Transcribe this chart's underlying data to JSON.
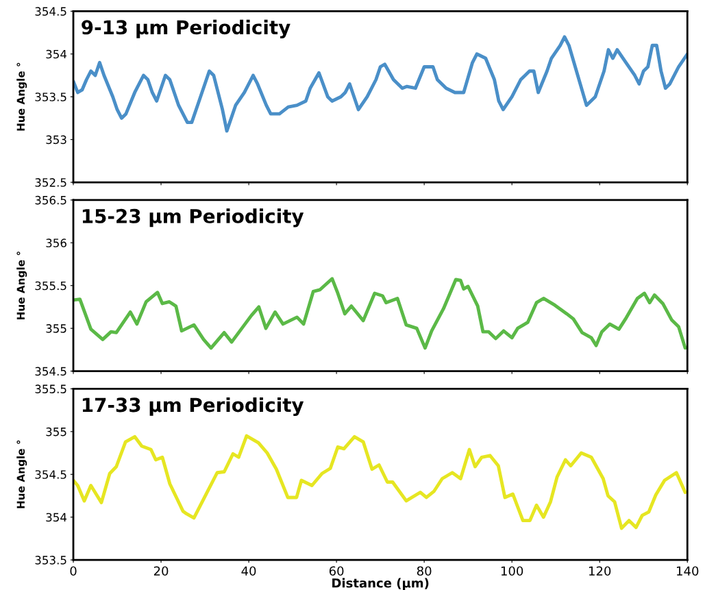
{
  "chart_data": [
    {
      "type": "line",
      "title": "9-13 µm Periodicity",
      "ylabel": "Hue Angle °",
      "xlim": [
        0,
        140
      ],
      "xticks": [
        0,
        20,
        40,
        60,
        80,
        100,
        120,
        140
      ],
      "ylim": [
        352.5,
        354.5
      ],
      "yticks": [
        352.5,
        353,
        353.5,
        354,
        354.5
      ],
      "tick_labels": "y",
      "grid": false,
      "legend": false,
      "series": [
        {
          "color": "#4a8fc8",
          "x": [
            0,
            1,
            2,
            3,
            4,
            5,
            6,
            7,
            9,
            10,
            11,
            12,
            14,
            16,
            17,
            18,
            19,
            21,
            22,
            24,
            26,
            27,
            29,
            31,
            32,
            34,
            35,
            37,
            39,
            41,
            42,
            44,
            45,
            47,
            49,
            51,
            53,
            54,
            56,
            58,
            59,
            61,
            62,
            63,
            65,
            67,
            69,
            70,
            71,
            73,
            75,
            76,
            78,
            80,
            82,
            83,
            85,
            87,
            89,
            91,
            92,
            94,
            96,
            97,
            98,
            100,
            102,
            104,
            105,
            106,
            108,
            109,
            111,
            112,
            113,
            115,
            117,
            119,
            121,
            122,
            123,
            124,
            126,
            128,
            129,
            130,
            131,
            132,
            133,
            134,
            135,
            136,
            138,
            140
          ],
          "values": [
            353.68,
            353.55,
            353.58,
            353.7,
            353.8,
            353.75,
            353.9,
            353.75,
            353.5,
            353.35,
            353.25,
            353.3,
            353.55,
            353.75,
            353.7,
            353.55,
            353.45,
            353.75,
            353.7,
            353.4,
            353.2,
            353.2,
            353.5,
            353.8,
            353.75,
            353.35,
            353.1,
            353.4,
            353.55,
            353.75,
            353.65,
            353.4,
            353.3,
            353.3,
            353.38,
            353.4,
            353.45,
            353.6,
            353.78,
            353.5,
            353.45,
            353.5,
            353.55,
            353.65,
            353.35,
            353.5,
            353.7,
            353.85,
            353.88,
            353.7,
            353.6,
            353.62,
            353.6,
            353.85,
            353.85,
            353.7,
            353.6,
            353.55,
            353.55,
            353.9,
            354.0,
            353.95,
            353.7,
            353.45,
            353.35,
            353.5,
            353.7,
            353.8,
            353.8,
            353.55,
            353.8,
            353.95,
            354.1,
            354.2,
            354.1,
            353.75,
            353.4,
            353.5,
            353.8,
            354.05,
            353.95,
            354.05,
            353.9,
            353.75,
            353.65,
            353.8,
            353.85,
            354.1,
            354.1,
            353.8,
            353.6,
            353.65,
            353.85,
            354.0
          ]
        }
      ]
    },
    {
      "type": "line",
      "title": "15-23 µm Periodicity",
      "ylabel": "Hue Angle °",
      "xlim": [
        0,
        140
      ],
      "xticks": [
        0,
        20,
        40,
        60,
        80,
        100,
        120,
        140
      ],
      "ylim": [
        354.5,
        356.5
      ],
      "yticks": [
        354.5,
        355,
        355.5,
        356,
        356.5
      ],
      "tick_labels": "y",
      "grid": false,
      "legend": false,
      "series": [
        {
          "color": "#5bb947",
          "x": [
            0,
            1.5,
            4,
            6.7,
            8.6,
            9.8,
            13,
            14.5,
            16.6,
            19.2,
            20.3,
            21.9,
            23.4,
            24.7,
            27.5,
            29.7,
            31.4,
            34.4,
            36.1,
            39,
            40.6,
            42.3,
            43.9,
            46,
            47.8,
            51,
            52.5,
            54.7,
            56.2,
            59,
            60.3,
            61.9,
            63.4,
            66.1,
            68.7,
            70.5,
            71.3,
            73.9,
            75.9,
            78.3,
            80.2,
            81.7,
            84.4,
            87.2,
            88.3,
            89,
            90,
            92.2,
            93.4,
            94.7,
            96.3,
            98.1,
            100,
            101.3,
            103.6,
            105.6,
            107.2,
            109.8,
            112.5,
            114,
            116,
            118.1,
            119.2,
            120.5,
            122.3,
            124.4,
            125.9,
            128.6,
            130.2,
            131.4,
            132.5,
            134.4,
            136.4,
            138,
            139.5
          ],
          "values": [
            355.33,
            355.34,
            354.99,
            354.87,
            354.96,
            354.95,
            355.19,
            355.05,
            355.31,
            355.42,
            355.29,
            355.31,
            355.26,
            354.97,
            355.04,
            354.87,
            354.77,
            354.95,
            354.84,
            355.04,
            355.15,
            355.25,
            355.0,
            355.19,
            355.05,
            355.13,
            355.05,
            355.43,
            355.45,
            355.58,
            355.41,
            355.17,
            355.26,
            355.09,
            355.41,
            355.38,
            355.3,
            355.35,
            355.04,
            355.0,
            354.77,
            354.97,
            355.23,
            355.57,
            355.56,
            355.46,
            355.49,
            355.26,
            354.96,
            354.96,
            354.88,
            354.97,
            354.89,
            355.0,
            355.07,
            355.3,
            355.35,
            355.27,
            355.17,
            355.11,
            354.95,
            354.89,
            354.8,
            354.96,
            355.05,
            354.99,
            355.11,
            355.35,
            355.41,
            355.3,
            355.39,
            355.29,
            355.1,
            355.02,
            354.77
          ]
        }
      ]
    },
    {
      "type": "line",
      "title": "17-33 µm Periodicity",
      "ylabel": "Hue Angle °",
      "xlabel": "Distance (μm)",
      "xlim": [
        0,
        140
      ],
      "xticks": [
        0,
        20,
        40,
        60,
        80,
        100,
        120,
        140
      ],
      "ylim": [
        353.5,
        355.5
      ],
      "yticks": [
        353.5,
        354,
        354.5,
        355,
        355.5
      ],
      "grid": false,
      "legend": false,
      "series": [
        {
          "color": "#e6e622",
          "x": [
            0,
            1,
            2.5,
            4,
            6.4,
            8.3,
            9.8,
            11.9,
            14,
            15.6,
            17.7,
            18.8,
            20.3,
            22,
            25,
            25.8,
            27.5,
            30.2,
            32.8,
            34.4,
            36.4,
            37.7,
            39.5,
            42.2,
            44.2,
            46.3,
            48.9,
            50.9,
            52,
            54.4,
            56.7,
            58.6,
            60.3,
            61.7,
            64.1,
            66.1,
            68.1,
            69.7,
            71.6,
            72.8,
            75.9,
            79.1,
            80.5,
            82.2,
            84.1,
            86.4,
            88.3,
            90.3,
            91.6,
            93.1,
            95,
            96.9,
            98.4,
            100.2,
            102.5,
            104.1,
            105.6,
            107.2,
            108.8,
            110.3,
            112.2,
            113.4,
            115.8,
            118.1,
            120.8,
            121.9,
            123.4,
            125,
            126.7,
            128.3,
            129.7,
            131.2,
            132.8,
            134.8,
            137.5,
            139.5
          ],
          "values": [
            354.43,
            354.37,
            354.19,
            354.37,
            354.17,
            354.51,
            354.59,
            354.88,
            354.94,
            354.83,
            354.79,
            354.67,
            354.7,
            354.39,
            354.07,
            354.04,
            353.99,
            354.26,
            354.52,
            354.53,
            354.74,
            354.7,
            354.95,
            354.87,
            354.75,
            354.56,
            354.23,
            354.23,
            354.43,
            354.37,
            354.51,
            354.57,
            354.82,
            354.8,
            354.94,
            354.88,
            354.56,
            354.61,
            354.41,
            354.41,
            354.19,
            354.29,
            354.23,
            354.3,
            354.45,
            354.52,
            354.45,
            354.79,
            354.59,
            354.7,
            354.72,
            354.6,
            354.23,
            354.27,
            353.96,
            353.96,
            354.14,
            354.0,
            354.18,
            354.47,
            354.67,
            354.6,
            354.75,
            354.7,
            354.45,
            354.25,
            354.18,
            353.87,
            353.96,
            353.88,
            354.02,
            354.06,
            354.26,
            354.43,
            354.52,
            354.29
          ]
        }
      ]
    }
  ]
}
